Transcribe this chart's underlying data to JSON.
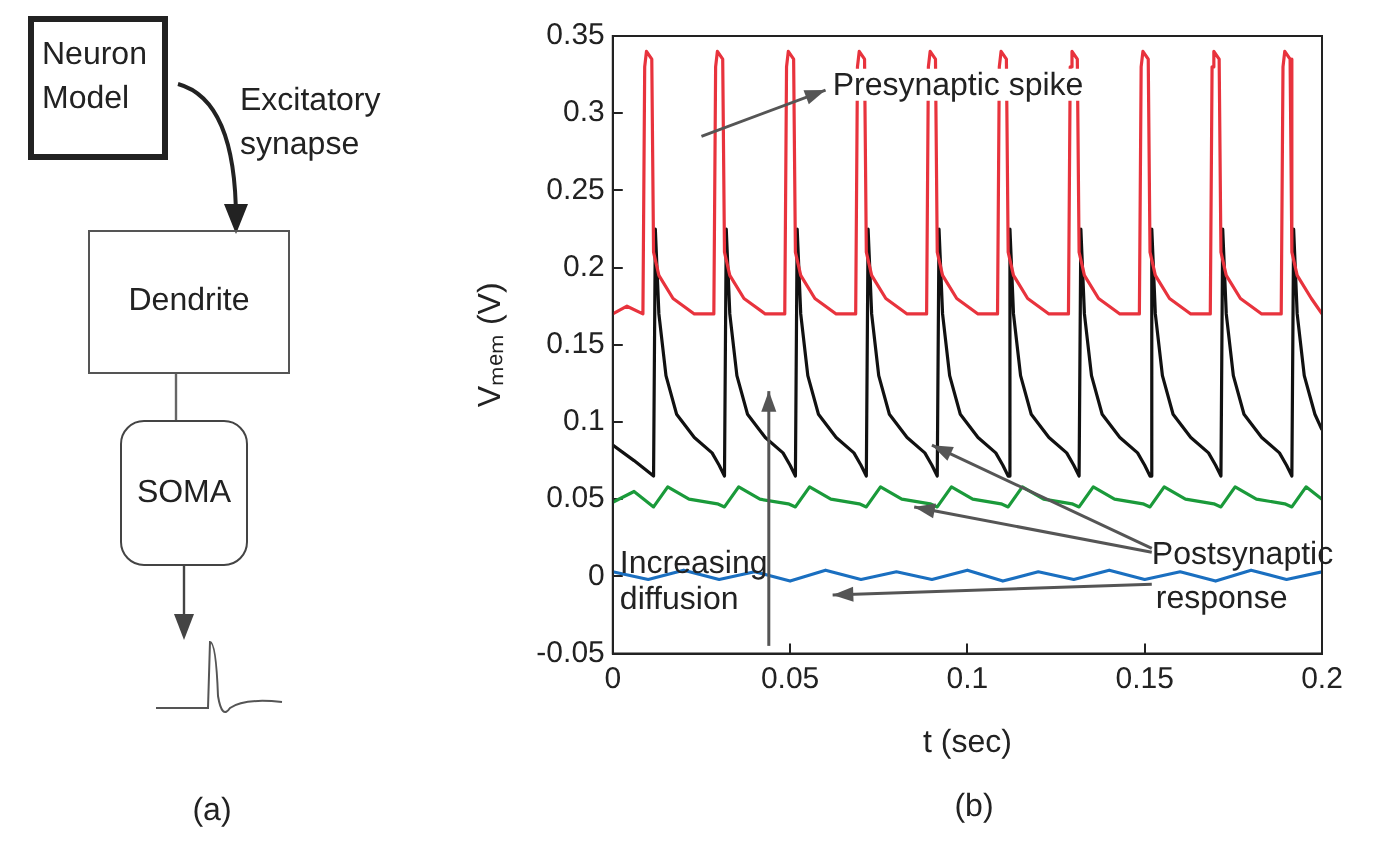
{
  "chart_data": [
    {
      "type": "other",
      "annotations": [
        "Neuron Model",
        "Excitatory synapse",
        "Dendrite",
        "SOMA",
        "(a)"
      ]
    },
    {
      "type": "line",
      "xlabel": "t (sec)",
      "ylabel": "Vₘₑₘ (V)",
      "annotations": [
        "Presynaptic spike",
        {
          "text": "Postsynaptic response",
          "x": 0.09,
          "y": 0.085
        },
        "Increasing diffusion",
        "(b)"
      ],
      "xlim": [
        0,
        0.2
      ],
      "xticks": [
        0,
        0.05,
        0.1,
        0.15,
        0.2
      ],
      "ylim": [
        -0.05,
        0.35
      ],
      "yticks": [
        -0.05,
        0,
        0.05,
        0.1,
        0.15,
        0.2,
        0.25,
        0.3,
        0.35
      ],
      "grid": false,
      "legend": false,
      "marker": "none",
      "line_style": "solid",
      "series": [
        {
          "color": "#e8333d",
          "x": [
            0,
            0.004,
            0.0085,
            0.009,
            0.0095,
            0.011,
            0.0115,
            0.013,
            0.017,
            0.023,
            0.0285,
            0.029,
            0.0295,
            0.031,
            0.0315,
            0.033,
            0.037,
            0.043,
            0.0485,
            0.049,
            0.0495,
            0.051,
            0.0515,
            0.053,
            0.057,
            0.063,
            0.0685,
            0.069,
            0.0695,
            0.071,
            0.0715,
            0.073,
            0.077,
            0.083,
            0.0885,
            0.089,
            0.0895,
            0.091,
            0.0915,
            0.093,
            0.097,
            0.103,
            0.1085,
            0.109,
            0.1095,
            0.111,
            0.1115,
            0.113,
            0.117,
            0.123,
            0.1285,
            0.129,
            0.1295,
            0.131,
            0.1315,
            0.133,
            0.137,
            0.143,
            0.1485,
            0.149,
            0.1495,
            0.151,
            0.1515,
            0.153,
            0.157,
            0.163,
            0.1685,
            0.169,
            0.1695,
            0.171,
            0.1715,
            0.173,
            0.177,
            0.183,
            0.1885,
            0.189,
            0.1895,
            0.191,
            0.1915,
            0.193,
            0.197,
            0.2
          ],
          "values": [
            0.17,
            0.175,
            0.17,
            0.33,
            0.34,
            0.335,
            0.21,
            0.195,
            0.18,
            0.17,
            0.17,
            0.33,
            0.34,
            0.335,
            0.21,
            0.195,
            0.18,
            0.17,
            0.17,
            0.33,
            0.34,
            0.335,
            0.21,
            0.195,
            0.18,
            0.17,
            0.17,
            0.33,
            0.34,
            0.335,
            0.21,
            0.195,
            0.18,
            0.17,
            0.17,
            0.33,
            0.34,
            0.335,
            0.21,
            0.195,
            0.18,
            0.17,
            0.17,
            0.33,
            0.34,
            0.335,
            0.21,
            0.195,
            0.18,
            0.17,
            0.17,
            0.33,
            0.34,
            0.335,
            0.21,
            0.195,
            0.18,
            0.17,
            0.17,
            0.33,
            0.34,
            0.335,
            0.21,
            0.195,
            0.18,
            0.17,
            0.17,
            0.33,
            0.34,
            0.335,
            0.21,
            0.195,
            0.18,
            0.17,
            0.17,
            0.33,
            0.34,
            0.335,
            0.21,
            0.195,
            0.18,
            0.17
          ]
        },
        {
          "color": "#111111",
          "x": [
            0,
            0.006,
            0.0115,
            0.012,
            0.013,
            0.015,
            0.018,
            0.023,
            0.028,
            0.03,
            0.0315,
            0.032,
            0.033,
            0.035,
            0.038,
            0.043,
            0.048,
            0.05,
            0.0515,
            0.052,
            0.053,
            0.055,
            0.058,
            0.063,
            0.068,
            0.07,
            0.0715,
            0.072,
            0.073,
            0.075,
            0.078,
            0.083,
            0.088,
            0.09,
            0.0915,
            0.092,
            0.093,
            0.095,
            0.098,
            0.103,
            0.108,
            0.11,
            0.1115,
            0.112,
            0.113,
            0.115,
            0.118,
            0.123,
            0.128,
            0.13,
            0.1315,
            0.132,
            0.133,
            0.135,
            0.138,
            0.143,
            0.148,
            0.15,
            0.1515,
            0.152,
            0.153,
            0.155,
            0.158,
            0.163,
            0.168,
            0.17,
            0.1715,
            0.172,
            0.173,
            0.175,
            0.178,
            0.183,
            0.188,
            0.19,
            0.1915,
            0.192,
            0.193,
            0.195,
            0.198,
            0.2
          ],
          "values": [
            0.085,
            0.075,
            0.065,
            0.225,
            0.17,
            0.13,
            0.105,
            0.09,
            0.08,
            0.072,
            0.065,
            0.225,
            0.17,
            0.13,
            0.105,
            0.09,
            0.08,
            0.072,
            0.065,
            0.225,
            0.17,
            0.13,
            0.105,
            0.09,
            0.08,
            0.072,
            0.065,
            0.225,
            0.17,
            0.13,
            0.105,
            0.09,
            0.08,
            0.072,
            0.065,
            0.225,
            0.17,
            0.13,
            0.105,
            0.09,
            0.08,
            0.072,
            0.065,
            0.225,
            0.17,
            0.13,
            0.105,
            0.09,
            0.08,
            0.072,
            0.065,
            0.225,
            0.17,
            0.13,
            0.105,
            0.09,
            0.08,
            0.072,
            0.065,
            0.225,
            0.17,
            0.13,
            0.105,
            0.09,
            0.08,
            0.072,
            0.065,
            0.225,
            0.17,
            0.13,
            0.105,
            0.09,
            0.08,
            0.072,
            0.065,
            0.225,
            0.17,
            0.13,
            0.105,
            0.095
          ]
        },
        {
          "color": "#1a9a3a",
          "x": [
            0,
            0.006,
            0.0115,
            0.0155,
            0.0215,
            0.0295,
            0.0315,
            0.0355,
            0.0415,
            0.0495,
            0.0515,
            0.0555,
            0.0615,
            0.0695,
            0.0715,
            0.0755,
            0.0815,
            0.0895,
            0.0915,
            0.0955,
            0.1015,
            0.1095,
            0.1115,
            0.1155,
            0.1215,
            0.1295,
            0.1315,
            0.1355,
            0.1415,
            0.1495,
            0.1515,
            0.1555,
            0.1615,
            0.1695,
            0.1715,
            0.1755,
            0.1815,
            0.1895,
            0.1915,
            0.1955,
            0.2
          ],
          "values": [
            0.048,
            0.055,
            0.045,
            0.058,
            0.05,
            0.047,
            0.045,
            0.058,
            0.05,
            0.047,
            0.045,
            0.058,
            0.05,
            0.047,
            0.045,
            0.058,
            0.05,
            0.047,
            0.045,
            0.058,
            0.05,
            0.047,
            0.045,
            0.058,
            0.05,
            0.047,
            0.045,
            0.058,
            0.05,
            0.047,
            0.045,
            0.058,
            0.05,
            0.047,
            0.045,
            0.058,
            0.05,
            0.047,
            0.045,
            0.058,
            0.05
          ]
        },
        {
          "color": "#1a6fc0",
          "x": [
            0,
            0.01,
            0.02,
            0.03,
            0.04,
            0.05,
            0.06,
            0.07,
            0.08,
            0.09,
            0.1,
            0.11,
            0.12,
            0.13,
            0.14,
            0.15,
            0.16,
            0.17,
            0.18,
            0.19,
            0.2
          ],
          "values": [
            0.003,
            -0.002,
            0.004,
            -0.002,
            0.003,
            -0.003,
            0.004,
            -0.002,
            0.003,
            -0.002,
            0.004,
            -0.003,
            0.003,
            -0.002,
            0.004,
            -0.002,
            0.003,
            -0.003,
            0.004,
            -0.002,
            0.003
          ]
        }
      ]
    }
  ]
}
